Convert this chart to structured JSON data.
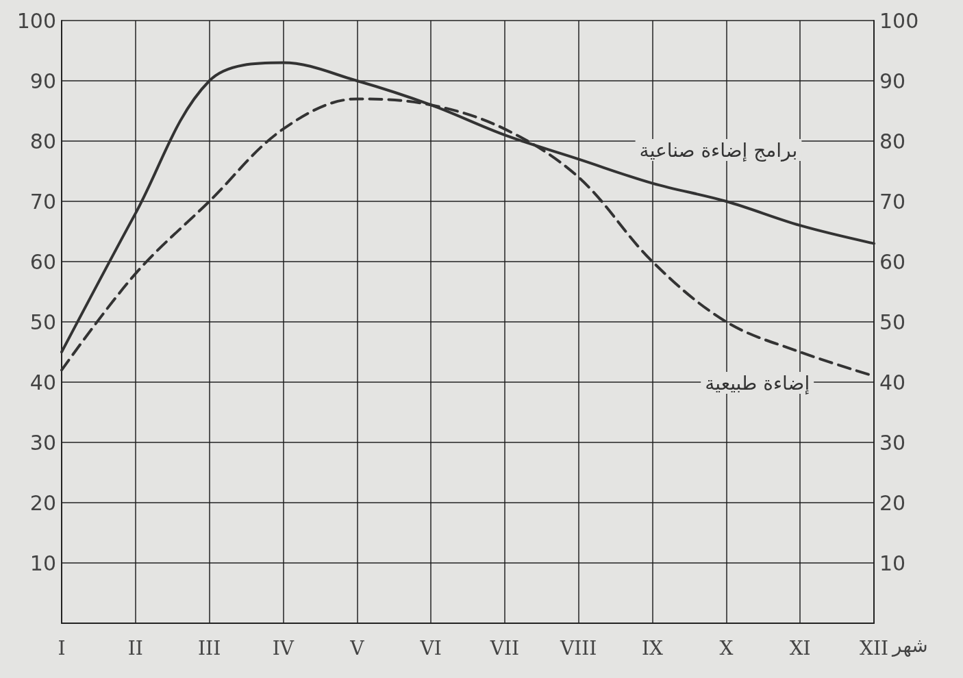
{
  "chart_data": {
    "type": "line",
    "xlabel": "شهر",
    "categories": [
      "I",
      "II",
      "III",
      "IV",
      "V",
      "VI",
      "VII",
      "VIII",
      "IX",
      "X",
      "XI",
      "XII"
    ],
    "series": [
      {
        "name": "برامج إضاءة صناعية",
        "color": "#333333",
        "line_style": "solid",
        "values": [
          45,
          68,
          90,
          93,
          90,
          86,
          81,
          77,
          73,
          70,
          66,
          63
        ]
      },
      {
        "name": "إضاءة طبيعية",
        "color": "#333333",
        "line_style": "dashed",
        "values": [
          42,
          58,
          70,
          82,
          87,
          86,
          82,
          74,
          60,
          50,
          45,
          41
        ]
      }
    ],
    "ylim": [
      0,
      100
    ],
    "yticks": [
      {
        "value": 0,
        "label": null
      },
      10,
      20,
      30,
      40,
      50,
      60,
      70,
      80,
      90,
      100
    ],
    "y2lim": [
      0,
      100
    ],
    "y2ticks": [
      10,
      20,
      30,
      40,
      50,
      60,
      70,
      80,
      90,
      100
    ],
    "grid": true,
    "marker": "none",
    "legend": false
  }
}
